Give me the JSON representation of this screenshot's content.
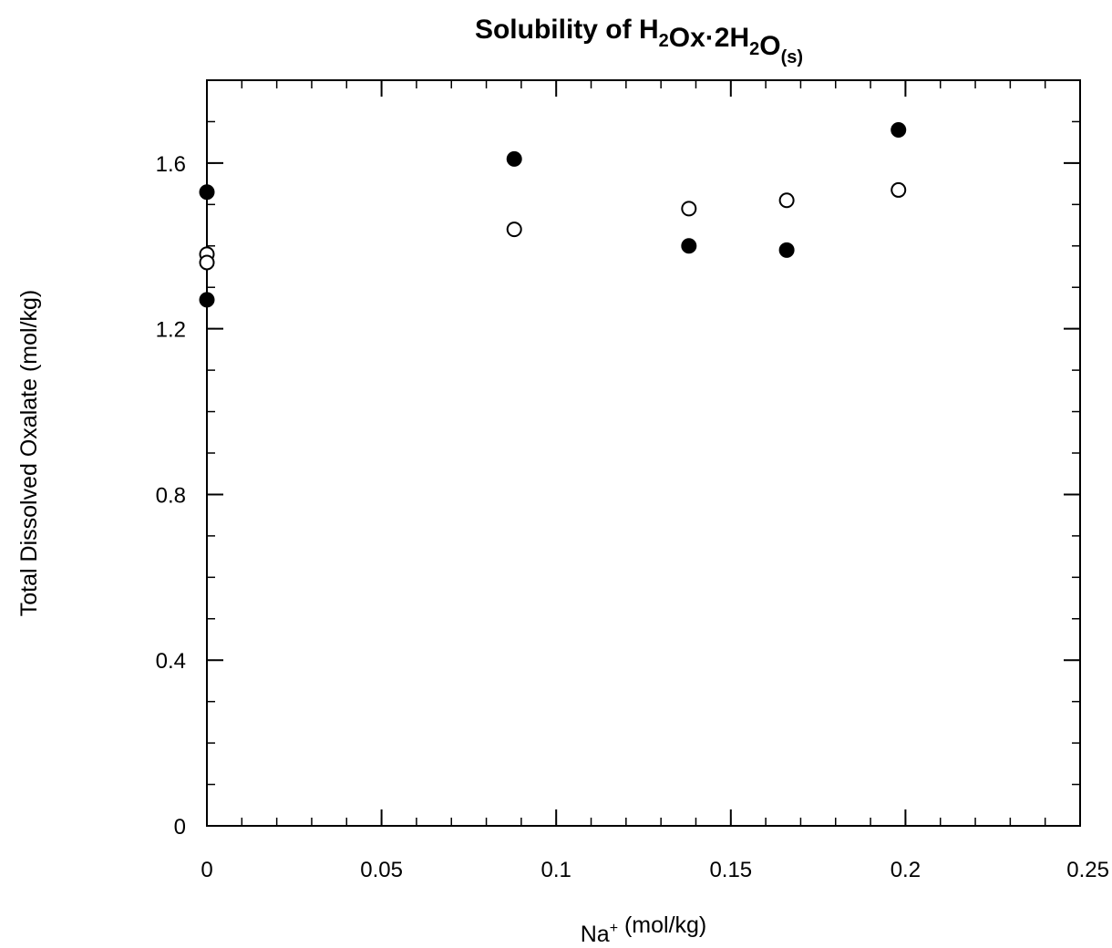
{
  "chart_data": {
    "type": "scatter",
    "title": {
      "parts": [
        {
          "text": "Solubility of H"
        },
        {
          "text": "2",
          "sub": true
        },
        {
          "text": "Ox·2H"
        },
        {
          "text": "2",
          "sub": true
        },
        {
          "text": "O"
        },
        {
          "text": "(s)",
          "sub": true
        }
      ]
    },
    "xlabel": {
      "parts": [
        {
          "text": "Na"
        },
        {
          "text": "+",
          "sup": true
        },
        {
          "text": " (mol/kg)"
        }
      ]
    },
    "ylabel": "Total Dissolved Oxalate (mol/kg)",
    "xlim": [
      0,
      0.25
    ],
    "ylim": [
      0,
      1.8
    ],
    "x_ticks": [
      {
        "value": 0,
        "label": "0"
      },
      {
        "value": 0.05,
        "label": "0.05"
      },
      {
        "value": 0.1,
        "label": "0.1"
      },
      {
        "value": 0.15,
        "label": "0.15"
      },
      {
        "value": 0.2,
        "label": "0.2"
      },
      {
        "value": 0.25,
        "label": "0.25"
      }
    ],
    "y_ticks": [
      {
        "value": 0,
        "label": "0"
      },
      {
        "value": 0.4,
        "label": "0.4"
      },
      {
        "value": 0.8,
        "label": "0.8"
      },
      {
        "value": 1.2,
        "label": "1.2"
      },
      {
        "value": 1.6,
        "label": "1.6"
      }
    ],
    "x_minor_step": 0.01,
    "y_minor_step": 0.1,
    "grid": false,
    "series": [
      {
        "marker": "filled-circle",
        "color": "#000000",
        "points": [
          {
            "x": 0.0,
            "y": 1.53
          },
          {
            "x": 0.0,
            "y": 1.27
          },
          {
            "x": 0.088,
            "y": 1.61
          },
          {
            "x": 0.138,
            "y": 1.4
          },
          {
            "x": 0.166,
            "y": 1.39
          },
          {
            "x": 0.198,
            "y": 1.68
          }
        ]
      },
      {
        "marker": "open-circle",
        "color": "#000000",
        "points": [
          {
            "x": 0.0,
            "y": 1.38
          },
          {
            "x": 0.0,
            "y": 1.36
          },
          {
            "x": 0.088,
            "y": 1.44
          },
          {
            "x": 0.138,
            "y": 1.49
          },
          {
            "x": 0.166,
            "y": 1.51
          },
          {
            "x": 0.198,
            "y": 1.535
          }
        ]
      }
    ]
  }
}
